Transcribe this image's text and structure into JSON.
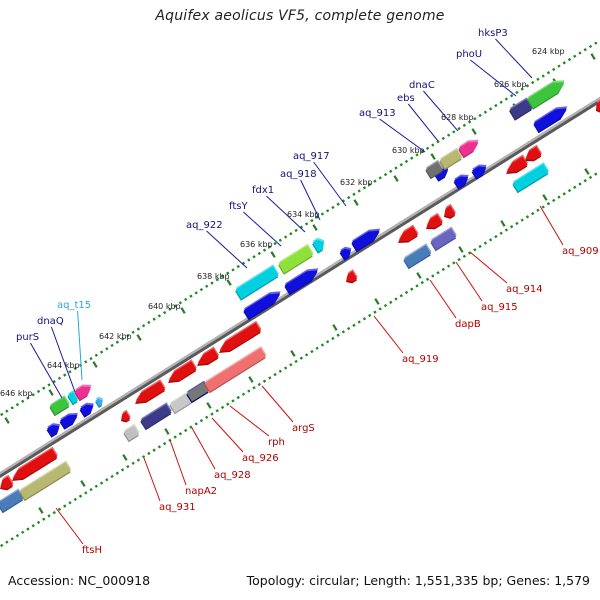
{
  "title": "Aquifex aeolicus VF5, complete genome",
  "footer": {
    "accession": "Accession: NC_000918",
    "summary": "Topology: circular; Length: 1,551,335 bp; Genes: 1,579"
  },
  "kbp_labels": [
    "624 kbp",
    "626 kbp",
    "628 kbp",
    "630 kbp",
    "632 kbp",
    "634 kbp",
    "636 kbp",
    "638 kbp",
    "640 kbp",
    "642 kbp",
    "644 kbp",
    "646 kbp"
  ],
  "genes_top": [
    "hksP3",
    "phoU",
    "dnaC",
    "ebs",
    "aq_913",
    "aq_917",
    "aq_918",
    "fdx1",
    "ftsY",
    "aq_922",
    "aq_t15",
    "dnaQ",
    "purS"
  ],
  "genes_bottom": [
    "aq_909",
    "aq_914",
    "aq_915",
    "dapB",
    "aq_919",
    "argS",
    "rph",
    "aq_926",
    "aq_928",
    "napA2",
    "aq_931",
    "ftsH"
  ],
  "colors": {
    "backbone": "#8a8a8a",
    "forward_gene": "#1010dd",
    "reverse_gene": "#e01010",
    "tick_green": "#1f8a1f",
    "label_blue": "#12127a",
    "label_red": "#b00000",
    "cyan": "#00d0e0",
    "lime": "#8ee03a",
    "green": "#3cc43c",
    "magenta": "#f03090",
    "olive": "#b8b870",
    "steel": "#4a7cb8",
    "slate": "#6a66c0",
    "indigo": "#3e3a8a",
    "pink": "#f07070",
    "gray": "#909090"
  }
}
